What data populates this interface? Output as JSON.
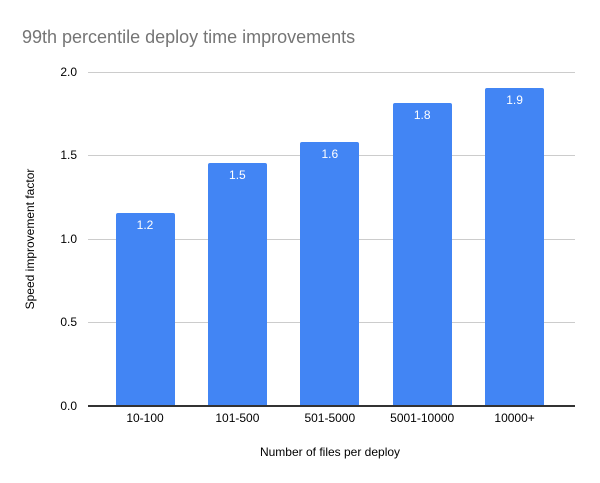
{
  "chart_data": {
    "type": "bar",
    "title": "99th percentile deploy time improvements",
    "categories": [
      "10-100",
      "101-500",
      "501-5000",
      "5001-10000",
      "10000+"
    ],
    "values": [
      1.15,
      1.45,
      1.58,
      1.81,
      1.9
    ],
    "data_labels": [
      "1.2",
      "1.5",
      "1.6",
      "1.8",
      "1.9"
    ],
    "xlabel": "Number of files per deploy",
    "ylabel": "Speed improvement factor",
    "ylim": [
      0,
      2.0
    ],
    "yticks": [
      "0.0",
      "0.5",
      "1.0",
      "1.5",
      "2.0"
    ],
    "grid": true,
    "legend": "none",
    "series_color": "#4285F4"
  },
  "style": {
    "background": "#ffffff",
    "title_color": "#757575",
    "gridline_color": "#cccccc",
    "baseline_color": "#333333",
    "axis_label_color": "#000000",
    "bar_label_color": "#ffffff"
  }
}
